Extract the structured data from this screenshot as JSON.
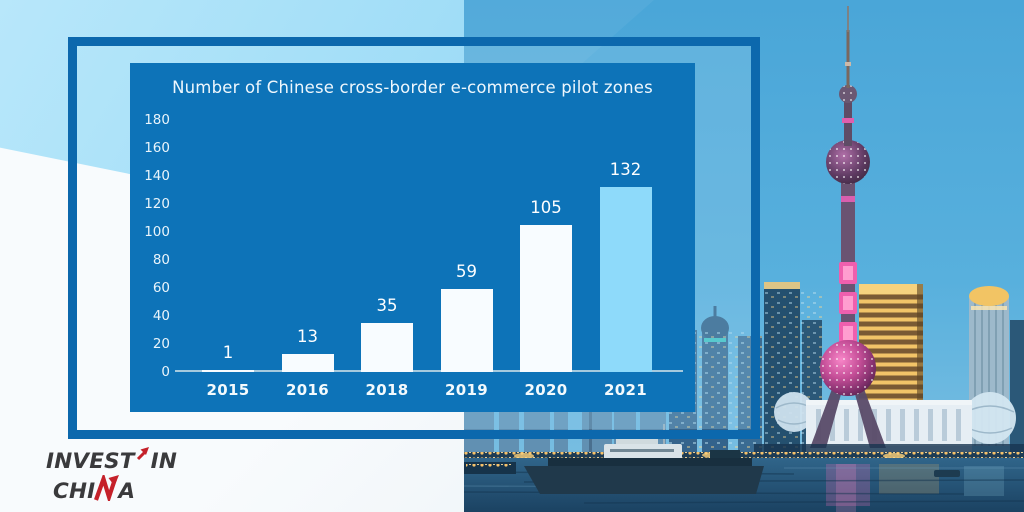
{
  "chart_data": {
    "type": "bar",
    "title": "Number of Chinese cross-border e-commerce pilot zones",
    "categories": [
      "2015",
      "2016",
      "2018",
      "2019",
      "2020",
      "2021"
    ],
    "values": [
      1,
      13,
      35,
      59,
      105,
      132
    ],
    "data_labels": [
      "1",
      "13",
      "35",
      "59",
      "105",
      "132"
    ],
    "xlabel": "",
    "ylabel": "",
    "ylim": [
      0,
      180
    ],
    "ytick_step": 20,
    "yticks": [
      180,
      160,
      140,
      120,
      100,
      80,
      60,
      40,
      20,
      0
    ],
    "grid": false,
    "legend_position": "none",
    "panel_color": "#0d73b8",
    "bar_colors": [
      "#f8fcff",
      "#f8fcff",
      "#f8fcff",
      "#f8fcff",
      "#f8fcff",
      "#8edafa"
    ],
    "bar_color_default": "#f8fcff",
    "bar_color_highlight": "#8edafa",
    "highlight_category": "2021",
    "axis_line_color": "#aecfdf",
    "text_color": "#ffffff"
  },
  "logo": {
    "full_text": "INVEST IN CHINA",
    "line1_left": "INVEST",
    "line1_right": "IN",
    "line2_left": "CHI",
    "line2_right": "A",
    "accent_color": "#c5212a",
    "text_color": "#3a3a3c",
    "icons": [
      "red-growth-arrow-icon",
      "red-arrow-letter-n-icon"
    ]
  },
  "decor": {
    "frame_border_color": "#0c68ad",
    "wedge_color": "#a7e0f8",
    "scene": "shanghai-pudong-skyline-dusk-photo"
  }
}
